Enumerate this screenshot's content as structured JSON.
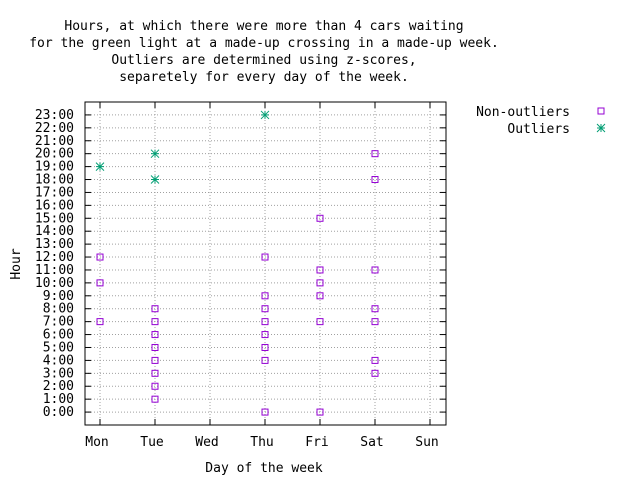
{
  "chart_data": {
    "type": "scatter",
    "title": [
      "Hours, at which there were more than 4 cars waiting",
      "for the green light at a made-up crossing in a made-up week.",
      "Outliers are determined using z-scores,",
      "separetely for every day of the week."
    ],
    "xlabel": "Day of the week",
    "ylabel": "Hour",
    "categories": [
      "Mon",
      "Tue",
      "Wed",
      "Thu",
      "Fri",
      "Sat",
      "Sun"
    ],
    "y_ticks": [
      "0:00",
      "1:00",
      "2:00",
      "3:00",
      "4:00",
      "5:00",
      "6:00",
      "7:00",
      "8:00",
      "9:00",
      "10:00",
      "11:00",
      "12:00",
      "13:00",
      "14:00",
      "15:00",
      "16:00",
      "17:00",
      "18:00",
      "19:00",
      "20:00",
      "21:00",
      "22:00",
      "23:00"
    ],
    "ylim": [
      -1,
      24
    ],
    "grid": true,
    "legend_position": "right",
    "series": [
      {
        "name": "Non-outliers",
        "marker": "open-square",
        "color": "#9400d3",
        "points": [
          {
            "x": "Mon",
            "y": 7
          },
          {
            "x": "Mon",
            "y": 10
          },
          {
            "x": "Mon",
            "y": 12
          },
          {
            "x": "Tue",
            "y": 1
          },
          {
            "x": "Tue",
            "y": 2
          },
          {
            "x": "Tue",
            "y": 3
          },
          {
            "x": "Tue",
            "y": 4
          },
          {
            "x": "Tue",
            "y": 5
          },
          {
            "x": "Tue",
            "y": 6
          },
          {
            "x": "Tue",
            "y": 7
          },
          {
            "x": "Tue",
            "y": 8
          },
          {
            "x": "Thu",
            "y": 0
          },
          {
            "x": "Thu",
            "y": 4
          },
          {
            "x": "Thu",
            "y": 5
          },
          {
            "x": "Thu",
            "y": 6
          },
          {
            "x": "Thu",
            "y": 7
          },
          {
            "x": "Thu",
            "y": 8
          },
          {
            "x": "Thu",
            "y": 9
          },
          {
            "x": "Thu",
            "y": 12
          },
          {
            "x": "Fri",
            "y": 0
          },
          {
            "x": "Fri",
            "y": 7
          },
          {
            "x": "Fri",
            "y": 9
          },
          {
            "x": "Fri",
            "y": 10
          },
          {
            "x": "Fri",
            "y": 11
          },
          {
            "x": "Fri",
            "y": 15
          },
          {
            "x": "Sat",
            "y": 3
          },
          {
            "x": "Sat",
            "y": 4
          },
          {
            "x": "Sat",
            "y": 7
          },
          {
            "x": "Sat",
            "y": 8
          },
          {
            "x": "Sat",
            "y": 11
          },
          {
            "x": "Sat",
            "y": 18
          },
          {
            "x": "Sat",
            "y": 20
          }
        ]
      },
      {
        "name": "Outliers",
        "marker": "asterisk",
        "color": "#009e73",
        "points": [
          {
            "x": "Mon",
            "y": 19
          },
          {
            "x": "Tue",
            "y": 18
          },
          {
            "x": "Tue",
            "y": 20
          },
          {
            "x": "Thu",
            "y": 23
          }
        ]
      }
    ]
  }
}
